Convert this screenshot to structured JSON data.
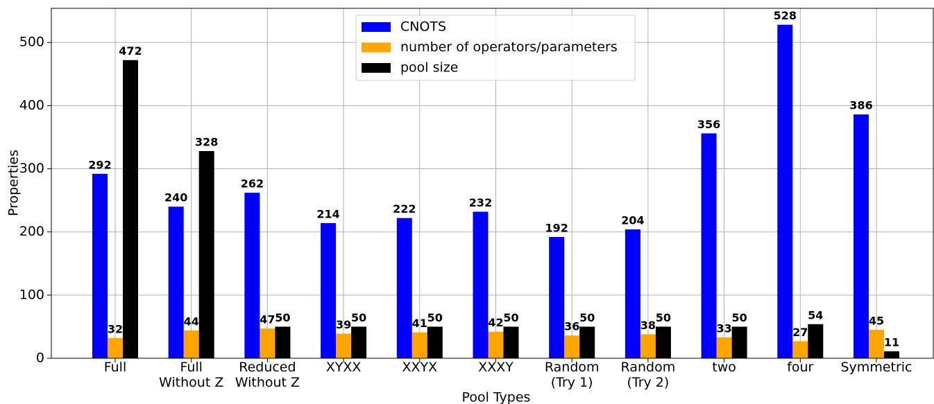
{
  "chart_data": {
    "type": "bar",
    "xlabel": "Pool Types",
    "ylabel": "Properties",
    "categories": [
      "Full",
      "Full\nWithout Z",
      "Reduced\nWithout Z",
      "XYXX",
      "XXYX",
      "XXXY",
      "Random\n(Try 1)",
      "Random\n(Try 2)",
      "two",
      "four",
      "Symmetric"
    ],
    "series": [
      {
        "name": "CNOTS",
        "color": "#0000ff",
        "values": [
          292,
          240,
          262,
          214,
          222,
          232,
          192,
          204,
          356,
          528,
          386
        ]
      },
      {
        "name": "number of operators/parameters",
        "color": "#ffa500",
        "values": [
          32,
          44,
          47,
          39,
          41,
          42,
          36,
          38,
          33,
          27,
          45
        ]
      },
      {
        "name": "pool size",
        "color": "#000000",
        "values": [
          472,
          328,
          50,
          50,
          50,
          50,
          50,
          50,
          50,
          54,
          11
        ]
      }
    ],
    "ylim": [
      0,
      554
    ],
    "yticks": [
      0,
      100,
      200,
      300,
      400,
      500
    ],
    "grid": true,
    "legend": "upper center"
  }
}
